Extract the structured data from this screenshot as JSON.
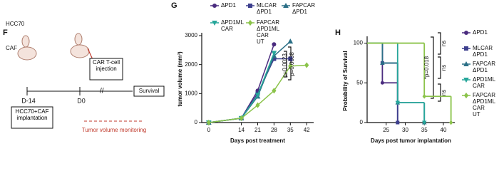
{
  "diagram": {
    "panel": "F",
    "cell_line": "HCC70",
    "caf": "CAF",
    "day_start": "D-14",
    "day_zero": "D0",
    "injection": "CAR T-cell injection",
    "end": "Survival",
    "implantation": "HCC70+CAF implantation",
    "monitoring": "Tumor volume monitoring"
  },
  "chart_data": [
    {
      "type": "line",
      "panel": "G",
      "x_label": "Days post treatment",
      "y_label": "tumor volume (mm³)",
      "xlim": [
        -3,
        45
      ],
      "xticks": [
        0,
        14,
        21,
        28,
        35,
        42
      ],
      "ylim": [
        0,
        3000
      ],
      "yticks": [
        0,
        1000,
        2000,
        3000
      ],
      "series": [
        {
          "name": "ΔPD1",
          "color": "#4b2c7f",
          "marker": "circle",
          "x": [
            0,
            14,
            21,
            28
          ],
          "values": [
            0,
            150,
            1100,
            2700
          ]
        },
        {
          "name": "MLCAR ΔPD1",
          "color": "#3d3f8e",
          "marker": "square",
          "x": [
            0,
            14,
            21,
            28,
            35
          ],
          "values": [
            0,
            150,
            1000,
            2200,
            2200
          ]
        },
        {
          "name": "FAPCAR ΔPD1",
          "color": "#2b6f86",
          "marker": "triangle",
          "x": [
            0,
            14,
            21,
            28,
            35
          ],
          "values": [
            0,
            150,
            900,
            2300,
            2800
          ]
        },
        {
          "name": "ΔPD1ML CAR",
          "color": "#26a69a",
          "marker": "tridown",
          "x": [
            0,
            14,
            21,
            28
          ],
          "values": [
            0,
            150,
            950,
            2400
          ]
        },
        {
          "name": "FAPCAR ΔPD1ML CAR UT",
          "color": "#8bc34a",
          "marker": "diamond",
          "x": [
            0,
            14,
            21,
            28,
            35,
            42
          ],
          "values": [
            0,
            150,
            600,
            1100,
            1950,
            1980
          ]
        }
      ],
      "annotations": [
        "p=0.0023",
        "p=0.0038"
      ]
    },
    {
      "type": "step",
      "panel": "H",
      "x_label": "Days post tumor implantation",
      "y_label": "Probability of Survival",
      "xlim": [
        20,
        43
      ],
      "xticks": [
        25,
        30,
        35,
        40
      ],
      "ylim": [
        0,
        105
      ],
      "yticks": [
        0,
        50,
        100
      ],
      "series": [
        {
          "name": "ΔPD1",
          "color": "#4b2c7f",
          "marker": "circle",
          "x": [
            20,
            24,
            28
          ],
          "values": [
            100,
            50,
            0
          ]
        },
        {
          "name": "MLCAR ΔPD1",
          "color": "#3d3f8e",
          "marker": "square",
          "x": [
            20,
            24,
            28
          ],
          "values": [
            100,
            75,
            0
          ]
        },
        {
          "name": "FAPCAR ΔPD1",
          "color": "#2b6f86",
          "marker": "triangle",
          "x": [
            20,
            24,
            28,
            35
          ],
          "values": [
            100,
            75,
            25,
            0
          ]
        },
        {
          "name": "ΔPD1ML CAR",
          "color": "#26a69a",
          "marker": "tridown",
          "x": [
            20,
            28,
            35
          ],
          "values": [
            100,
            25,
            0
          ]
        },
        {
          "name": "FAPCAR ΔPD1ML CAR UT",
          "color": "#8bc34a",
          "marker": "diamond",
          "x": [
            20,
            35,
            42
          ],
          "values": [
            100,
            33,
            0
          ]
        }
      ],
      "annotations": [
        "ns",
        "ns",
        "ns",
        "*p=0.018"
      ]
    }
  ]
}
